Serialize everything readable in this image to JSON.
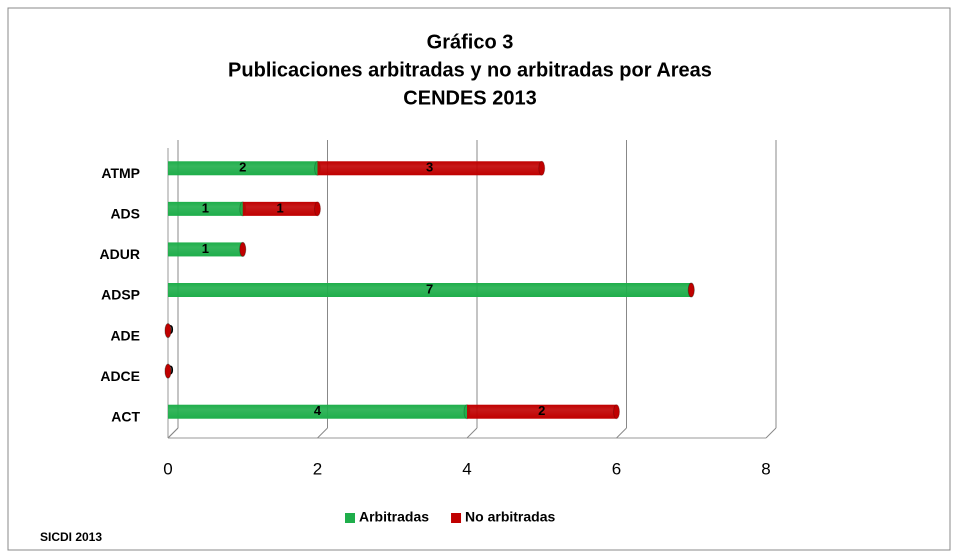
{
  "chart_data": {
    "type": "bar",
    "orientation": "horizontal",
    "stacked": true,
    "title": [
      "Gráfico 3",
      "Publicaciones arbitradas y no arbitradas por Areas",
      "CENDES 2013"
    ],
    "source": "SICDI 2013",
    "categories": [
      "ACT",
      "ADCE",
      "ADE",
      "ADSP",
      "ADUR",
      "ADS",
      "ATMP"
    ],
    "series": [
      {
        "name": "Arbitradas",
        "color": "#1fae4b",
        "values": [
          4,
          0,
          0,
          7,
          1,
          1,
          2
        ]
      },
      {
        "name": "No arbitradas",
        "color": "#c00000",
        "values": [
          2,
          0,
          0,
          0,
          0,
          1,
          3
        ]
      }
    ],
    "xlim": [
      0,
      8
    ],
    "xticks": [
      0,
      2,
      4,
      6,
      8
    ],
    "grid": true,
    "legend": "bottom"
  }
}
